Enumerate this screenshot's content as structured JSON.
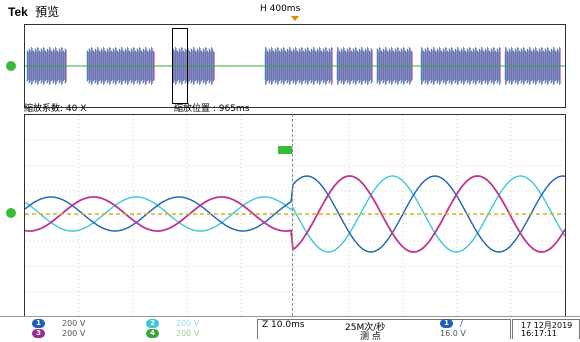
{
  "header": {
    "brand": "Tek",
    "mode": "預览",
    "horizontal_position": "H 400ms"
  },
  "zoom": {
    "factor": "縮放系数: 40 X",
    "position": "縮放位置 : 965ms"
  },
  "channels": [
    {
      "num": "1",
      "scale": "200 V",
      "color": "#1f5fb5"
    },
    {
      "num": "2",
      "scale": "200 V",
      "color": "#3fc7d4"
    },
    {
      "num": "3",
      "scale": "200 V",
      "color": "#9c2a9a"
    },
    {
      "num": "4",
      "scale": "200 V",
      "color": "#3aa83a"
    }
  ],
  "timebase": {
    "zoom_scale": "Z 10.0ms",
    "sample_rate": "25M次/秒",
    "acq_mode": "测 点"
  },
  "trigger": {
    "channel": "1",
    "slope": "∕",
    "level": "16.0 V"
  },
  "datetime": {
    "date": "17 12月2019",
    "time": "16:17:11"
  },
  "colors": {
    "ch1": "#1f5fb5",
    "ch2": "#3fc7d4",
    "ch3": "#c2338f",
    "ch4_trace": "#c9b62a",
    "ground_marker": "#3aba3a"
  }
}
